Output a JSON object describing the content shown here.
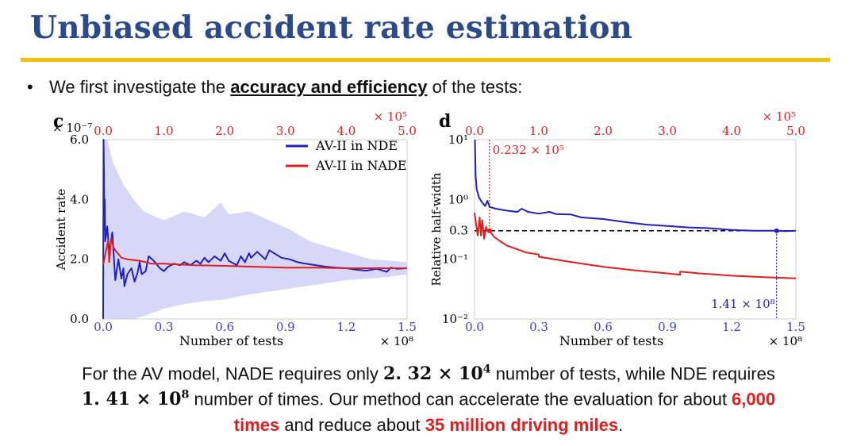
{
  "slide": {
    "title": "Unbiased accident rate estimation",
    "bullet": {
      "pre": "We first investigate the ",
      "emphasis": "accuracy and efficiency",
      "post": " of the tests:"
    },
    "summary": {
      "l1_a": "For the AV model, NADE requires only ",
      "l1_math_base": "2. 32 × 10",
      "l1_math_exp": "4",
      "l1_b": " number of tests, while NDE requires",
      "l2_math_base": "1. 41 × 10",
      "l2_math_exp": "8",
      "l2_a": " number of times. Our method can accelerate the evaluation for about ",
      "l2_red": "6,000",
      "l3_red1": "times",
      "l3_a": " and reduce about ",
      "l3_red2": "35 million driving miles",
      "l3_b": "."
    }
  },
  "colors": {
    "nde": "#1f1fc8",
    "nade": "#e41c1c",
    "band": "#c9cbf5",
    "top_axis": "#e41c1c",
    "bottom_axis": "#3b3bd6",
    "title": "#2b4a8c",
    "rule": "#f2c200"
  },
  "chart_data": [
    {
      "panel": "c",
      "type": "line",
      "xlabel": "Number of tests",
      "x_multiplier": "× 10⁸",
      "xlim": [
        0,
        1.5
      ],
      "x_ticks": [
        "0.0",
        "0.3",
        "0.6",
        "0.9",
        "1.2",
        "1.5"
      ],
      "top_axis": {
        "multiplier": "× 10⁵",
        "ticks": [
          "0.0",
          "1.0",
          "2.0",
          "3.0",
          "4.0",
          "5.0"
        ]
      },
      "ylabel": "Accident rate",
      "y_multiplier": "× 10⁻⁷",
      "ylim": [
        0,
        6
      ],
      "y_ticks": [
        "0.0",
        "2.0",
        "4.0",
        "6.0"
      ],
      "legend": "top-right",
      "series": [
        {
          "name": "AV-II in NDE",
          "axis": "bottom",
          "points": [
            [
              0,
              0
            ],
            [
              0.002,
              6
            ],
            [
              0.004,
              5
            ],
            [
              0.006,
              3
            ],
            [
              0.008,
              4
            ],
            [
              0.01,
              2.6
            ],
            [
              0.02,
              3.1
            ],
            [
              0.03,
              2.2
            ],
            [
              0.045,
              2.9
            ],
            [
              0.06,
              1.3
            ],
            [
              0.075,
              2.0
            ],
            [
              0.09,
              1.35
            ],
            [
              0.1,
              1.7
            ],
            [
              0.105,
              1.1
            ],
            [
              0.12,
              1.5
            ],
            [
              0.14,
              1.7
            ],
            [
              0.155,
              1.25
            ],
            [
              0.17,
              1.55
            ],
            [
              0.18,
              1.9
            ],
            [
              0.19,
              1.5
            ],
            [
              0.21,
              1.6
            ],
            [
              0.225,
              2.1
            ],
            [
              0.25,
              1.95
            ],
            [
              0.28,
              1.7
            ],
            [
              0.3,
              1.6
            ],
            [
              0.32,
              1.75
            ],
            [
              0.35,
              1.85
            ],
            [
              0.38,
              1.8
            ],
            [
              0.4,
              1.9
            ],
            [
              0.43,
              1.8
            ],
            [
              0.46,
              1.95
            ],
            [
              0.48,
              1.85
            ],
            [
              0.5,
              2.05
            ],
            [
              0.52,
              1.9
            ],
            [
              0.55,
              2.1
            ],
            [
              0.58,
              1.95
            ],
            [
              0.6,
              2.2
            ],
            [
              0.62,
              1.95
            ],
            [
              0.66,
              1.8
            ],
            [
              0.68,
              2.1
            ],
            [
              0.7,
              1.9
            ],
            [
              0.72,
              2.2
            ],
            [
              0.73,
              2.05
            ],
            [
              0.76,
              2.25
            ],
            [
              0.8,
              2.0
            ],
            [
              0.82,
              2.3
            ],
            [
              0.88,
              2.05
            ],
            [
              0.92,
              2.0
            ],
            [
              0.96,
              1.9
            ],
            [
              1.0,
              1.85
            ],
            [
              1.05,
              1.8
            ],
            [
              1.1,
              1.75
            ],
            [
              1.15,
              1.72
            ],
            [
              1.2,
              1.7
            ],
            [
              1.25,
              1.65
            ],
            [
              1.3,
              1.62
            ],
            [
              1.35,
              1.68
            ],
            [
              1.4,
              1.58
            ],
            [
              1.42,
              1.72
            ],
            [
              1.45,
              1.68
            ],
            [
              1.5,
              1.7
            ]
          ]
        },
        {
          "name": "AV-II in NADE",
          "axis": "top",
          "points": [
            [
              0,
              1.8
            ],
            [
              0.05,
              2.3
            ],
            [
              0.08,
              2.6
            ],
            [
              0.1,
              1.9
            ],
            [
              0.13,
              2.7
            ],
            [
              0.17,
              2.4
            ],
            [
              0.2,
              2.3
            ],
            [
              0.3,
              2.05
            ],
            [
              0.4,
              2.0
            ],
            [
              0.6,
              1.95
            ],
            [
              0.8,
              1.85
            ],
            [
              1.0,
              1.85
            ],
            [
              1.5,
              1.8
            ],
            [
              2.0,
              1.78
            ],
            [
              2.5,
              1.75
            ],
            [
              3.0,
              1.72
            ],
            [
              3.5,
              1.72
            ],
            [
              4.0,
              1.7
            ],
            [
              4.5,
              1.7
            ],
            [
              5.0,
              1.7
            ]
          ]
        }
      ],
      "band_upper": [
        [
          0,
          6
        ],
        [
          0.02,
          6
        ],
        [
          0.05,
          5.2
        ],
        [
          0.1,
          4.5
        ],
        [
          0.15,
          4.0
        ],
        [
          0.2,
          3.6
        ],
        [
          0.3,
          3.3
        ],
        [
          0.4,
          3.6
        ],
        [
          0.5,
          3.4
        ],
        [
          0.58,
          3.9
        ],
        [
          0.62,
          3.5
        ],
        [
          0.72,
          3.6
        ],
        [
          0.82,
          3.3
        ],
        [
          0.92,
          3.0
        ],
        [
          1.02,
          2.6
        ],
        [
          1.12,
          2.4
        ],
        [
          1.22,
          2.2
        ],
        [
          1.32,
          2.0
        ],
        [
          1.42,
          1.95
        ],
        [
          1.5,
          1.9
        ]
      ],
      "band_lower": [
        [
          0,
          0
        ],
        [
          0.02,
          0
        ],
        [
          0.05,
          0
        ],
        [
          0.1,
          0
        ],
        [
          0.15,
          0
        ],
        [
          0.2,
          0.1
        ],
        [
          0.3,
          0.35
        ],
        [
          0.4,
          0.5
        ],
        [
          0.5,
          0.6
        ],
        [
          0.6,
          0.65
        ],
        [
          0.7,
          0.8
        ],
        [
          0.8,
          0.9
        ],
        [
          0.9,
          1.0
        ],
        [
          1.0,
          1.1
        ],
        [
          1.1,
          1.2
        ],
        [
          1.2,
          1.3
        ],
        [
          1.3,
          1.35
        ],
        [
          1.4,
          1.4
        ],
        [
          1.5,
          1.5
        ]
      ]
    },
    {
      "panel": "d",
      "type": "line",
      "xlabel": "Number of tests",
      "x_multiplier": "× 10⁸",
      "xlim": [
        0,
        1.5
      ],
      "x_ticks": [
        "0.0",
        "0.3",
        "0.6",
        "0.9",
        "1.2",
        "1.5"
      ],
      "top_axis": {
        "multiplier": "× 10⁵",
        "ticks": [
          "0.0",
          "1.0",
          "2.0",
          "3.0",
          "4.0",
          "5.0"
        ]
      },
      "ylabel": "Relative half-width",
      "y_scale": "log",
      "ylim": [
        0.01,
        10
      ],
      "y_ticks": [
        "10⁻²",
        "10⁻¹",
        "0.3",
        "10⁰",
        "10¹"
      ],
      "threshold": 0.3,
      "annotations": [
        {
          "text": "0.232 × 10⁵",
          "x_top": 0.232,
          "y": 0.3
        },
        {
          "text": "1.41 × 10⁸",
          "x": 1.41,
          "y": 0.3
        }
      ],
      "series": [
        {
          "name": "AV-II in NDE",
          "axis": "bottom",
          "points": [
            [
              0.002,
              10
            ],
            [
              0.005,
              2.5
            ],
            [
              0.01,
              1.5
            ],
            [
              0.015,
              1.3
            ],
            [
              0.02,
              1.1
            ],
            [
              0.03,
              0.95
            ],
            [
              0.04,
              0.85
            ],
            [
              0.05,
              0.78
            ],
            [
              0.06,
              0.95
            ],
            [
              0.07,
              0.75
            ],
            [
              0.1,
              0.7
            ],
            [
              0.15,
              0.65
            ],
            [
              0.2,
              0.62
            ],
            [
              0.22,
              0.7
            ],
            [
              0.25,
              0.62
            ],
            [
              0.3,
              0.58
            ],
            [
              0.35,
              0.62
            ],
            [
              0.38,
              0.57
            ],
            [
              0.45,
              0.56
            ],
            [
              0.5,
              0.5
            ],
            [
              0.6,
              0.47
            ],
            [
              0.7,
              0.42
            ],
            [
              0.8,
              0.38
            ],
            [
              0.9,
              0.36
            ],
            [
              1.0,
              0.34
            ],
            [
              1.1,
              0.33
            ],
            [
              1.2,
              0.31
            ],
            [
              1.3,
              0.3
            ],
            [
              1.41,
              0.3
            ],
            [
              1.45,
              0.295
            ],
            [
              1.5,
              0.3
            ]
          ]
        },
        {
          "name": "AV-II in NADE",
          "axis": "top",
          "points": [
            [
              0.0,
              0.6
            ],
            [
              0.05,
              0.25
            ],
            [
              0.08,
              0.5
            ],
            [
              0.1,
              0.25
            ],
            [
              0.12,
              0.45
            ],
            [
              0.15,
              0.22
            ],
            [
              0.18,
              0.35
            ],
            [
              0.2,
              0.3
            ],
            [
              0.232,
              0.3
            ],
            [
              0.3,
              0.24
            ],
            [
              0.4,
              0.2
            ],
            [
              0.5,
              0.17
            ],
            [
              0.8,
              0.13
            ],
            [
              1.0,
              0.12
            ],
            [
              1.0,
              0.11
            ],
            [
              1.5,
              0.09
            ],
            [
              2.0,
              0.075
            ],
            [
              2.5,
              0.065
            ],
            [
              3.0,
              0.058
            ],
            [
              3.2,
              0.055
            ],
            [
              3.2,
              0.062
            ],
            [
              3.5,
              0.058
            ],
            [
              4.0,
              0.053
            ],
            [
              4.5,
              0.05
            ],
            [
              5.0,
              0.048
            ]
          ]
        }
      ]
    }
  ]
}
